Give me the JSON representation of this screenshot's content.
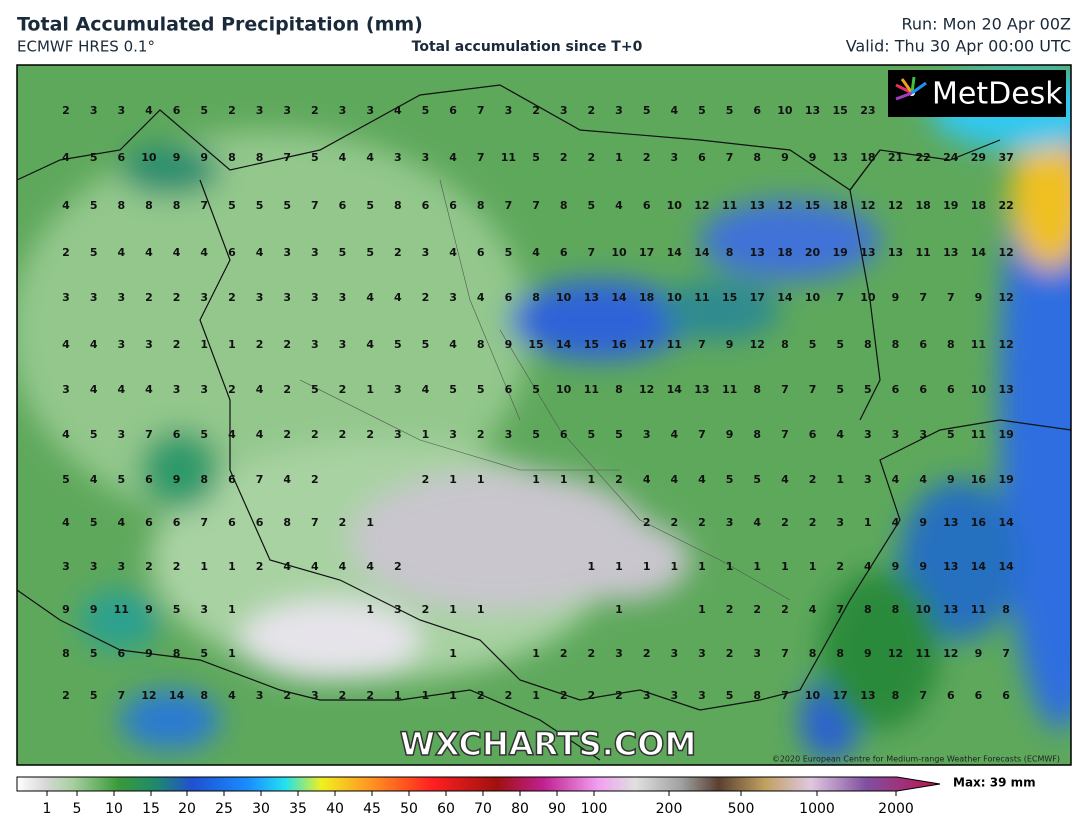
{
  "header": {
    "title": "Total Accumulated Precipitation (mm)",
    "model": "ECMWF HRES 0.1°",
    "subtitle": "Total accumulation since T+0",
    "run": "Run: Mon 20 Apr 00Z",
    "valid": "Valid: Thu 30 Apr 00:00 UTC"
  },
  "logo": "MetDesk",
  "watermark": "WXCHARTS.COM",
  "credit": "©2020 European Centre for Medium-range Weather Forecasts (ECMWF)",
  "grid": {
    "rows": [
      [
        2,
        3,
        3,
        4,
        6,
        5,
        2,
        3,
        3,
        2,
        3,
        3,
        4,
        5,
        6,
        7,
        3,
        2,
        3,
        2,
        3,
        5,
        4,
        5,
        5,
        6,
        10,
        13,
        15,
        23,
        null,
        null,
        null,
        null,
        null
      ],
      [
        4,
        5,
        6,
        10,
        9,
        9,
        8,
        8,
        7,
        5,
        4,
        4,
        3,
        3,
        4,
        7,
        11,
        5,
        2,
        2,
        1,
        2,
        3,
        6,
        7,
        8,
        9,
        9,
        13,
        18,
        21,
        22,
        24,
        29,
        37
      ],
      [
        4,
        5,
        8,
        8,
        8,
        7,
        5,
        5,
        5,
        7,
        6,
        5,
        8,
        6,
        6,
        8,
        7,
        7,
        8,
        5,
        4,
        6,
        10,
        12,
        11,
        13,
        12,
        15,
        18,
        12,
        12,
        18,
        19,
        18,
        22
      ],
      [
        2,
        5,
        4,
        4,
        4,
        4,
        6,
        4,
        3,
        3,
        5,
        5,
        2,
        3,
        4,
        6,
        5,
        4,
        6,
        7,
        10,
        17,
        14,
        14,
        8,
        13,
        18,
        20,
        19,
        13,
        13,
        11,
        13,
        14,
        12
      ],
      [
        3,
        3,
        3,
        2,
        2,
        3,
        2,
        3,
        3,
        3,
        3,
        4,
        4,
        2,
        3,
        4,
        6,
        8,
        10,
        13,
        14,
        18,
        10,
        11,
        15,
        17,
        14,
        10,
        7,
        10,
        9,
        7,
        7,
        9,
        12
      ],
      [
        4,
        4,
        3,
        3,
        2,
        1,
        1,
        2,
        2,
        3,
        3,
        4,
        5,
        5,
        4,
        8,
        9,
        15,
        14,
        15,
        16,
        17,
        11,
        7,
        9,
        12,
        8,
        5,
        5,
        8,
        8,
        6,
        8,
        11,
        12
      ],
      [
        3,
        4,
        4,
        4,
        3,
        3,
        2,
        4,
        2,
        5,
        2,
        1,
        3,
        4,
        5,
        5,
        6,
        5,
        10,
        11,
        8,
        12,
        14,
        13,
        11,
        8,
        7,
        7,
        5,
        5,
        6,
        6,
        6,
        10,
        13
      ],
      [
        4,
        5,
        3,
        7,
        6,
        5,
        4,
        4,
        2,
        2,
        2,
        2,
        3,
        1,
        3,
        2,
        3,
        5,
        6,
        5,
        5,
        3,
        4,
        7,
        9,
        8,
        7,
        6,
        4,
        3,
        3,
        3,
        5,
        11,
        19
      ],
      [
        5,
        4,
        5,
        6,
        9,
        8,
        6,
        7,
        4,
        2,
        null,
        null,
        null,
        2,
        1,
        1,
        null,
        1,
        1,
        1,
        2,
        4,
        4,
        4,
        5,
        5,
        4,
        2,
        1,
        3,
        4,
        4,
        9,
        16,
        19
      ],
      [
        4,
        5,
        4,
        6,
        6,
        7,
        6,
        6,
        8,
        7,
        2,
        1,
        null,
        null,
        null,
        null,
        null,
        null,
        null,
        null,
        null,
        2,
        2,
        2,
        3,
        4,
        2,
        2,
        3,
        1,
        4,
        9,
        13,
        16,
        14
      ],
      [
        3,
        3,
        3,
        2,
        2,
        1,
        1,
        2,
        4,
        4,
        4,
        4,
        2,
        null,
        null,
        null,
        null,
        null,
        null,
        1,
        1,
        1,
        1,
        1,
        1,
        1,
        1,
        1,
        2,
        4,
        9,
        9,
        13,
        14,
        14
      ],
      [
        9,
        9,
        11,
        9,
        5,
        3,
        1,
        null,
        null,
        null,
        null,
        1,
        3,
        2,
        1,
        1,
        null,
        null,
        null,
        null,
        1,
        null,
        null,
        1,
        2,
        2,
        2,
        4,
        7,
        8,
        8,
        10,
        13,
        11,
        8
      ],
      [
        8,
        5,
        6,
        9,
        8,
        5,
        1,
        null,
        null,
        null,
        null,
        null,
        null,
        null,
        1,
        null,
        null,
        1,
        2,
        2,
        3,
        2,
        3,
        3,
        2,
        3,
        7,
        8,
        8,
        9,
        12,
        11,
        12,
        9,
        7
      ],
      [
        2,
        5,
        7,
        12,
        14,
        8,
        4,
        3,
        2,
        3,
        2,
        2,
        1,
        1,
        1,
        2,
        2,
        1,
        2,
        2,
        2,
        3,
        3,
        3,
        5,
        8,
        7,
        10,
        17,
        13,
        8,
        7,
        6,
        6,
        6
      ]
    ]
  },
  "colorbar": {
    "ticks": [
      1,
      5,
      10,
      15,
      20,
      25,
      30,
      35,
      40,
      45,
      50,
      60,
      70,
      80,
      90,
      100,
      200,
      500,
      1000,
      2000
    ],
    "max_label": "Max: 39 mm"
  }
}
